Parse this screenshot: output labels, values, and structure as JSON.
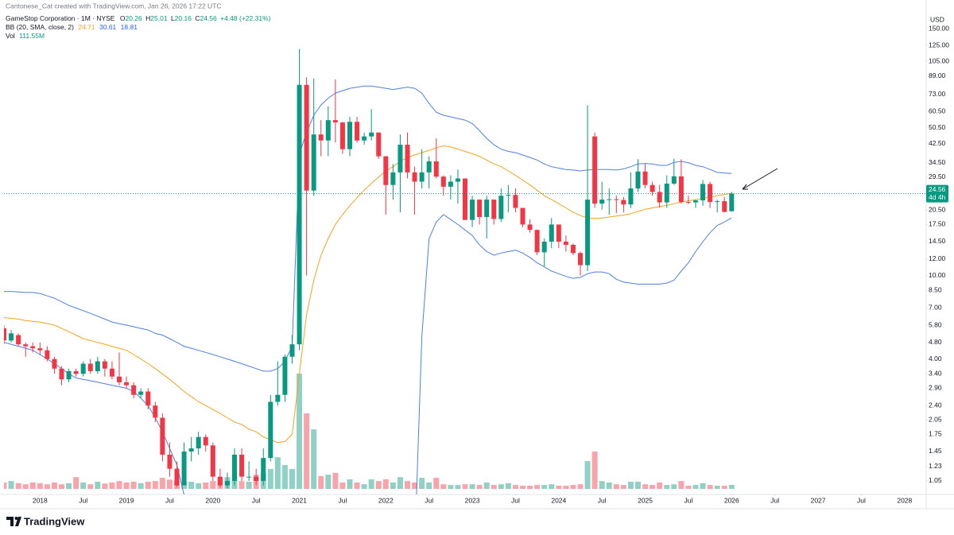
{
  "credit": "Cantonese_Cat created with TradingView.com, Jan 26, 2026 17:22 UTC",
  "logo": "TradingView",
  "chart_data": {
    "type": "candlestick",
    "symbol": "GameStop Corporation · 1M · NYSE",
    "ohlc_letters": [
      "O",
      "H",
      "L",
      "C"
    ],
    "change_label": "+4.48 (+22.31%)",
    "currency": "USD",
    "countdown": "4d 4h",
    "volume_name": "Vol",
    "volume_label": "111.55M",
    "log_scale": true,
    "up_color": "#089981",
    "down_color": "#f23645",
    "x": [
      "2017-08",
      "2017-09",
      "2017-10",
      "2017-11",
      "2017-12",
      "2018-01",
      "2018-02",
      "2018-03",
      "2018-04",
      "2018-05",
      "2018-06",
      "2018-07",
      "2018-08",
      "2018-09",
      "2018-10",
      "2018-11",
      "2018-12",
      "2019-01",
      "2019-02",
      "2019-03",
      "2019-04",
      "2019-05",
      "2019-06",
      "2019-07",
      "2019-08",
      "2019-09",
      "2019-10",
      "2019-11",
      "2019-12",
      "2020-01",
      "2020-02",
      "2020-03",
      "2020-04",
      "2020-05",
      "2020-06",
      "2020-07",
      "2020-08",
      "2020-09",
      "2020-10",
      "2020-11",
      "2020-12",
      "2021-01",
      "2021-02",
      "2021-03",
      "2021-04",
      "2021-05",
      "2021-06",
      "2021-07",
      "2021-08",
      "2021-09",
      "2021-10",
      "2021-11",
      "2021-12",
      "2022-01",
      "2022-02",
      "2022-03",
      "2022-04",
      "2022-05",
      "2022-06",
      "2022-07",
      "2022-08",
      "2022-09",
      "2022-10",
      "2022-11",
      "2022-12",
      "2023-01",
      "2023-02",
      "2023-03",
      "2023-04",
      "2023-05",
      "2023-06",
      "2023-07",
      "2023-08",
      "2023-09",
      "2023-10",
      "2023-11",
      "2023-12",
      "2024-01",
      "2024-02",
      "2024-03",
      "2024-04",
      "2024-05",
      "2024-06",
      "2024-07",
      "2024-08",
      "2024-09",
      "2024-10",
      "2024-11",
      "2024-12",
      "2025-01",
      "2025-02",
      "2025-03",
      "2025-04",
      "2025-05",
      "2025-06",
      "2025-07",
      "2025-08",
      "2025-09",
      "2025-10",
      "2025-11",
      "2025-12",
      "2026-01"
    ],
    "open": [
      5.6,
      4.9,
      5.2,
      4.7,
      4.6,
      4.5,
      4.4,
      4.0,
      3.6,
      3.2,
      3.5,
      3.4,
      3.8,
      3.5,
      3.9,
      3.6,
      3.3,
      3.1,
      3.0,
      2.7,
      2.8,
      2.4,
      2.1,
      1.4,
      1.2,
      1.0,
      1.45,
      1.5,
      1.7,
      1.55,
      1.1,
      1.0,
      1.05,
      1.4,
      1.1,
      1.1,
      1.05,
      1.35,
      2.5,
      2.7,
      4.1,
      4.7,
      81,
      25.4,
      47,
      44,
      55,
      53.6,
      40,
      54,
      44,
      46,
      48,
      37,
      27,
      31,
      42,
      31,
      28,
      31,
      35,
      29.6,
      26.5,
      28,
      29,
      18.4,
      23,
      19,
      23,
      18.6,
      24,
      24.2,
      21,
      17.5,
      16.5,
      12.9,
      14.5,
      17.5,
      14.5,
      14,
      12.8,
      11.2,
      46,
      22,
      23,
      23.1,
      22.9,
      21.8,
      26,
      31.3,
      27,
      25,
      22.3,
      27.4,
      29.7,
      22.4,
      22.3,
      22.8,
      27.3,
      22.4,
      22.6,
      20.26
    ],
    "high": [
      5.8,
      5.5,
      5.3,
      4.8,
      4.8,
      4.8,
      4.6,
      4.1,
      3.7,
      3.6,
      3.6,
      3.9,
      4.0,
      4.1,
      4.0,
      3.9,
      4.3,
      3.3,
      3.1,
      2.9,
      2.9,
      2.5,
      2.2,
      1.6,
      1.3,
      1.6,
      1.7,
      1.8,
      1.75,
      1.6,
      1.2,
      1.15,
      1.5,
      1.5,
      1.3,
      1.2,
      1.5,
      2.7,
      3.9,
      4.2,
      5.2,
      120,
      88,
      87,
      55,
      64,
      86,
      54,
      57,
      57,
      48,
      62,
      48,
      37,
      34,
      47,
      48,
      33,
      40,
      37,
      45,
      30,
      30,
      32,
      29,
      24,
      23,
      24,
      23,
      26,
      27,
      26,
      21,
      18.5,
      16.5,
      15,
      18.8,
      17.5,
      15.5,
      14.2,
      13,
      64.8,
      48,
      28,
      26,
      24,
      23.7,
      31,
      35.8,
      34,
      28,
      27,
      30,
      36,
      35.8,
      24,
      23,
      28.5,
      28,
      23,
      23.7,
      25.01
    ],
    "low": [
      4.7,
      4.8,
      4.6,
      4.1,
      4.3,
      4.2,
      3.9,
      3.4,
      3.0,
      3.1,
      3.3,
      3.3,
      3.4,
      3.4,
      3.3,
      3.2,
      3.0,
      2.9,
      2.6,
      2.6,
      2.3,
      2.0,
      1.3,
      1.1,
      0.98,
      1.0,
      1.3,
      1.4,
      1.45,
      1.05,
      0.98,
      0.97,
      1.0,
      1.05,
      1.05,
      1.0,
      1.0,
      1.3,
      2.4,
      2.5,
      3.8,
      4.4,
      10,
      24,
      37,
      37,
      43,
      38,
      37,
      43,
      42,
      44,
      36,
      19.5,
      23,
      20,
      29,
      19.5,
      26,
      26,
      29,
      24,
      23,
      22,
      18.4,
      17,
      17.5,
      15,
      17.5,
      18,
      20,
      20,
      17,
      16,
      12.5,
      11,
      13.5,
      13.5,
      13,
      12.5,
      10,
      10.5,
      21,
      20.6,
      19.5,
      19.8,
      20,
      21,
      25,
      26,
      24,
      21,
      21,
      27,
      22,
      21.9,
      21,
      21.5,
      21,
      20,
      20,
      20.16
    ],
    "close": [
      4.9,
      5.3,
      4.7,
      4.6,
      4.5,
      4.4,
      4.0,
      3.6,
      3.2,
      3.5,
      3.4,
      3.8,
      3.5,
      3.9,
      3.6,
      3.3,
      3.1,
      3.0,
      2.7,
      2.8,
      2.4,
      2.1,
      1.4,
      1.2,
      1.0,
      1.45,
      1.5,
      1.7,
      1.55,
      1.1,
      1.0,
      1.05,
      1.4,
      1.1,
      1.1,
      1.05,
      1.35,
      2.5,
      2.7,
      4.1,
      4.7,
      81,
      25.4,
      47,
      44,
      55,
      53.6,
      40,
      54,
      44,
      46,
      48,
      37,
      27,
      31,
      42,
      31,
      28,
      31,
      35,
      29.6,
      26.5,
      28,
      29,
      18.4,
      23,
      19,
      23,
      18.6,
      24,
      24.2,
      21,
      17.5,
      16.5,
      12.9,
      14.5,
      17.5,
      14.5,
      14,
      12.8,
      11.2,
      23,
      22,
      23,
      23.1,
      22.9,
      21.8,
      26,
      31.3,
      27,
      25,
      22.3,
      27.4,
      29.7,
      22.4,
      22.3,
      22.8,
      27.3,
      22.4,
      22.6,
      20.1,
      24.56
    ],
    "volume": [
      180,
      220,
      160,
      130,
      180,
      160,
      130,
      180,
      130,
      160,
      330,
      180,
      130,
      200,
      150,
      180,
      220,
      180,
      200,
      160,
      200,
      220,
      310,
      260,
      220,
      180,
      200,
      160,
      180,
      220,
      290,
      330,
      260,
      220,
      200,
      400,
      450,
      560,
      890,
      670,
      560,
      3235,
      2120,
      1670,
      360,
      400,
      450,
      180,
      270,
      180,
      130,
      270,
      220,
      270,
      180,
      330,
      220,
      180,
      310,
      180,
      310,
      130,
      110,
      110,
      130,
      130,
      110,
      180,
      110,
      130,
      160,
      110,
      90,
      90,
      110,
      110,
      130,
      90,
      90,
      110,
      130,
      780,
      1050,
      220,
      180,
      130,
      110,
      200,
      200,
      130,
      110,
      180,
      110,
      130,
      220,
      90,
      110,
      160,
      110,
      90,
      90,
      111.55
    ],
    "bb": {
      "label": "BB (20, SMA, close, 2)",
      "basis_color": "#f7a21b",
      "band_color": "#4f7ee6",
      "basis": [
        6.3,
        6.25,
        6.2,
        6.1,
        6.05,
        6.0,
        5.9,
        5.8,
        5.6,
        5.4,
        5.2,
        5.0,
        4.9,
        4.8,
        4.7,
        4.6,
        4.5,
        4.4,
        4.2,
        4.0,
        3.8,
        3.6,
        3.4,
        3.2,
        3.0,
        2.8,
        2.65,
        2.5,
        2.4,
        2.3,
        2.2,
        2.1,
        2.0,
        1.95,
        1.85,
        1.8,
        1.7,
        1.65,
        1.6,
        1.62,
        1.75,
        3.4,
        6.5,
        9.5,
        12.5,
        15,
        17.5,
        19.5,
        21.5,
        23.5,
        25.5,
        27.5,
        29.5,
        31.5,
        33,
        35,
        36.5,
        37.5,
        38.5,
        39.5,
        40.5,
        41.5,
        41,
        40,
        39,
        38,
        37,
        35.5,
        34,
        33,
        31.5,
        30,
        28.5,
        27,
        25.5,
        24,
        23,
        22,
        21,
        20,
        19.3,
        18.8,
        18.7,
        18.8,
        19,
        19.2,
        19.4,
        19.7,
        20.2,
        20.7,
        21,
        21.3,
        21.6,
        22,
        22.4,
        22.7,
        23,
        23.3,
        23.7,
        24,
        24.3,
        24.71
      ],
      "upper": [
        8.4,
        8.4,
        8.35,
        8.3,
        8.3,
        8.2,
        8.0,
        7.8,
        7.5,
        7.2,
        7.0,
        6.8,
        6.6,
        6.4,
        6.2,
        6.0,
        5.9,
        5.8,
        5.7,
        5.6,
        5.5,
        5.3,
        5.2,
        5.0,
        4.8,
        4.6,
        4.5,
        4.4,
        4.3,
        4.2,
        4.1,
        4.0,
        3.9,
        3.8,
        3.7,
        3.6,
        3.5,
        3.5,
        3.6,
        3.9,
        4.6,
        38,
        48,
        58,
        65,
        70,
        74,
        76,
        78,
        79,
        80,
        80,
        79,
        78,
        77,
        78,
        79,
        78,
        74,
        66,
        60,
        58,
        57,
        56,
        55,
        53,
        49,
        45,
        42,
        40,
        39,
        38.5,
        37.5,
        36.5,
        35.5,
        34,
        33,
        32.5,
        32,
        31.8,
        31.5,
        31.8,
        32,
        32,
        32,
        31.8,
        32.2,
        33,
        34,
        34.2,
        34,
        33.5,
        33.5,
        34.6,
        35,
        34.5,
        33.5,
        33,
        32,
        31,
        30.8,
        30.61
      ],
      "lower": [
        4.8,
        4.7,
        4.6,
        4.5,
        4.4,
        4.2,
        4.0,
        3.8,
        3.6,
        3.4,
        3.25,
        3.2,
        3.15,
        3.1,
        3.05,
        3.0,
        2.95,
        2.9,
        2.8,
        2.6,
        2.4,
        2.1,
        1.8,
        1.5,
        1.25,
        0.9,
        null,
        null,
        null,
        null,
        null,
        null,
        null,
        null,
        null,
        null,
        null,
        null,
        null,
        null,
        null,
        null,
        null,
        null,
        null,
        null,
        null,
        null,
        null,
        null,
        null,
        null,
        null,
        null,
        null,
        null,
        null,
        0.5,
        5.1,
        15,
        18,
        19.5,
        18.5,
        17.5,
        16.5,
        15.5,
        14,
        13,
        12.5,
        12.8,
        13,
        13.2,
        12.8,
        12.2,
        11.5,
        11,
        10.5,
        10.2,
        9.9,
        9.7,
        9.8,
        10.2,
        10.4,
        10.4,
        10.2,
        9.6,
        9.3,
        9.2,
        9.1,
        9.1,
        9.1,
        9.1,
        9.2,
        9.5,
        10.5,
        11.5,
        13,
        14.5,
        16,
        17.3,
        18,
        18.81
      ]
    },
    "xlim": [
      "2017-08",
      "2028-04"
    ],
    "xticks": [
      {
        "value": "2018-01",
        "label": "2018"
      },
      {
        "value": "2018-07",
        "label": "Jul"
      },
      {
        "value": "2019-01",
        "label": "2019"
      },
      {
        "value": "2019-07",
        "label": "Jul"
      },
      {
        "value": "2020-01",
        "label": "2020"
      },
      {
        "value": "2020-07",
        "label": "Jul"
      },
      {
        "value": "2021-01",
        "label": "2021"
      },
      {
        "value": "2021-07",
        "label": "Jul"
      },
      {
        "value": "2022-01",
        "label": "2022"
      },
      {
        "value": "2022-07",
        "label": "Jul"
      },
      {
        "value": "2023-01",
        "label": "2023"
      },
      {
        "value": "2023-07",
        "label": "Jul"
      },
      {
        "value": "2024-01",
        "label": "2024"
      },
      {
        "value": "2024-07",
        "label": "Jul"
      },
      {
        "value": "2025-01",
        "label": "2025"
      },
      {
        "value": "2025-07",
        "label": "Jul"
      },
      {
        "value": "2026-01",
        "label": "2026"
      },
      {
        "value": "2026-07",
        "label": "Jul"
      },
      {
        "value": "2027-01",
        "label": "2027"
      },
      {
        "value": "2027-07",
        "label": "Jul"
      },
      {
        "value": "2028-01",
        "label": "2028"
      }
    ],
    "ylim": [
      0.962,
      161
    ],
    "yticks": [
      {
        "value": 150,
        "label": "150.00"
      },
      {
        "value": 125,
        "label": "125.00"
      },
      {
        "value": 105,
        "label": "105.00"
      },
      {
        "value": 89,
        "label": "89.00"
      },
      {
        "value": 73,
        "label": "73.00"
      },
      {
        "value": 60.5,
        "label": "60.50"
      },
      {
        "value": 50.5,
        "label": "50.50"
      },
      {
        "value": 42.5,
        "label": "42.50"
      },
      {
        "value": 34.5,
        "label": "34.50"
      },
      {
        "value": 29.5,
        "label": "29.50"
      },
      {
        "value": 20.5,
        "label": "20.50"
      },
      {
        "value": 17.5,
        "label": "17.50"
      },
      {
        "value": 14.5,
        "label": "14.50"
      },
      {
        "value": 12,
        "label": "12.00"
      },
      {
        "value": 10,
        "label": "10.00"
      },
      {
        "value": 8.5,
        "label": "8.50"
      },
      {
        "value": 7,
        "label": "7.00"
      },
      {
        "value": 5.8,
        "label": "5.80"
      },
      {
        "value": 4.8,
        "label": "4.80"
      },
      {
        "value": 4,
        "label": "4.00"
      },
      {
        "value": 3.4,
        "label": "3.40"
      },
      {
        "value": 2.9,
        "label": "2.90"
      },
      {
        "value": 2.4,
        "label": "2.40"
      },
      {
        "value": 2.05,
        "label": "2.05"
      },
      {
        "value": 1.75,
        "label": "1.75"
      },
      {
        "value": 1.45,
        "label": "1.45"
      },
      {
        "value": 1.23,
        "label": "1.23"
      },
      {
        "value": 1.05,
        "label": "1.05"
      }
    ]
  }
}
